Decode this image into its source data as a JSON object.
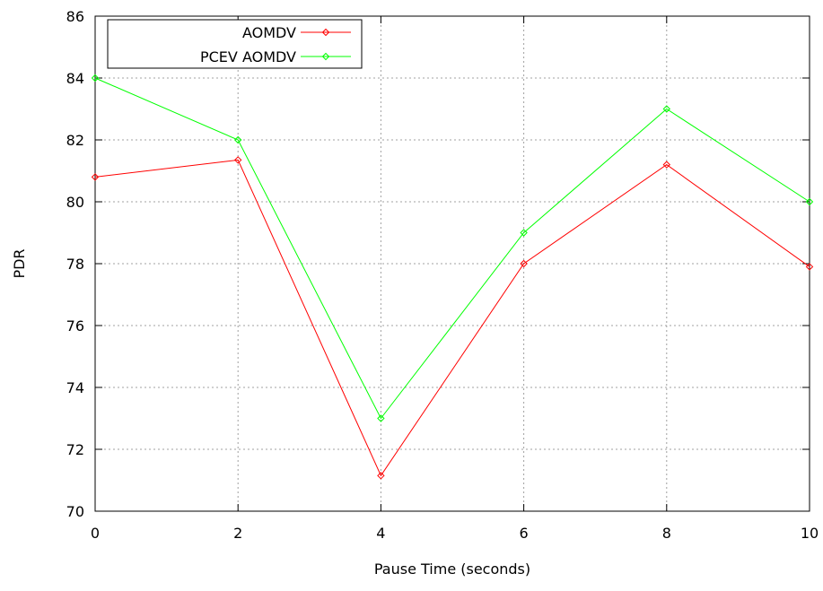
{
  "chart_data": {
    "type": "line",
    "title": "",
    "xlabel": "Pause Time (seconds)",
    "ylabel": "PDR",
    "x": [
      0,
      2,
      4,
      6,
      8,
      10
    ],
    "xlim": [
      0,
      10
    ],
    "ylim": [
      70,
      86
    ],
    "x_ticks": [
      "0",
      "2",
      "4",
      "6",
      "8",
      "10"
    ],
    "y_ticks": [
      "70",
      "72",
      "74",
      "76",
      "78",
      "80",
      "82",
      "84",
      "86"
    ],
    "grid": true,
    "legend_position": "top-left",
    "series": [
      {
        "name": "AOMDV",
        "color": "#ff0000",
        "marker": "diamond",
        "values": [
          80.8,
          81.35,
          71.15,
          78.0,
          81.2,
          77.9
        ]
      },
      {
        "name": "PCEV  AOMDV",
        "color": "#00ff00",
        "marker": "diamond",
        "values": [
          84.0,
          82.0,
          73.0,
          79.0,
          83.0,
          80.0
        ]
      }
    ]
  }
}
